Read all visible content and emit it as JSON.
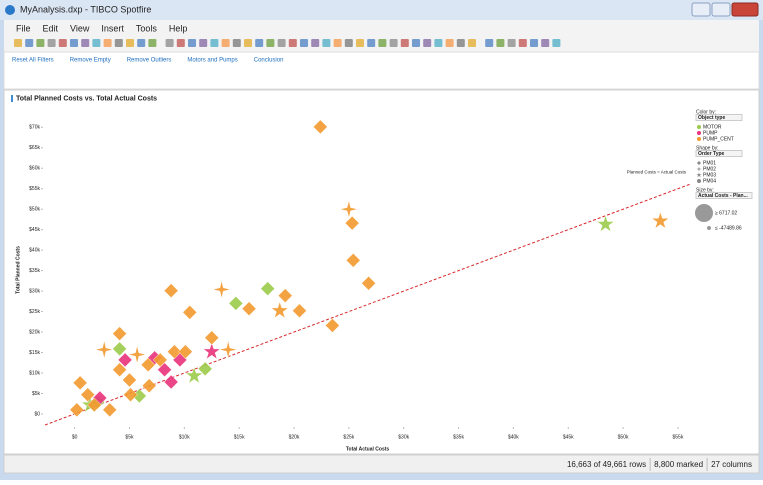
{
  "window": {
    "title": "MyAnalysis.dxp - TIBCO Spotfire"
  },
  "menu": [
    "File",
    "Edit",
    "View",
    "Insert",
    "Tools",
    "Help"
  ],
  "page_tabs": [
    "Reset All Filters",
    "Remove Empty",
    "Remove Outliers",
    "Motors and Pumps",
    "Conclusion"
  ],
  "chart_data": {
    "type": "scatter",
    "title": "Total Planned Costs vs. Total Actual Costs",
    "x_label": "Total Actual Costs",
    "y_label": "Total Planned Costs",
    "xlim": [
      -2700,
      56100
    ],
    "ylim": [
      -2700,
      73000
    ],
    "xticks": [
      {
        "value": 0,
        "label": "$0"
      },
      {
        "value": 5000,
        "label": "$5k"
      },
      {
        "value": 10000,
        "label": "$10k"
      },
      {
        "value": 15000,
        "label": "$15k"
      },
      {
        "value": 20000,
        "label": "$20k"
      },
      {
        "value": 25000,
        "label": "$25k"
      },
      {
        "value": 30000,
        "label": "$30k"
      },
      {
        "value": 35000,
        "label": "$35k"
      },
      {
        "value": 40000,
        "label": "$40k"
      },
      {
        "value": 45000,
        "label": "$45k"
      },
      {
        "value": 50000,
        "label": "$50k"
      },
      {
        "value": 55000,
        "label": "$55k"
      }
    ],
    "yticks": [
      {
        "value": 0,
        "label": "$0"
      },
      {
        "value": 5000,
        "label": "$5k"
      },
      {
        "value": 10000,
        "label": "$10k"
      },
      {
        "value": 15000,
        "label": "$15k"
      },
      {
        "value": 20000,
        "label": "$20k"
      },
      {
        "value": 25000,
        "label": "$25k"
      },
      {
        "value": 30000,
        "label": "$30k"
      },
      {
        "value": 35000,
        "label": "$35k"
      },
      {
        "value": 40000,
        "label": "$40k"
      },
      {
        "value": 45000,
        "label": "$45k"
      },
      {
        "value": 50000,
        "label": "$50k"
      },
      {
        "value": 55000,
        "label": "$55k"
      },
      {
        "value": 60000,
        "label": "$60k"
      },
      {
        "value": 65000,
        "label": "$65k"
      },
      {
        "value": 70000,
        "label": "$70k"
      }
    ],
    "reference_line": {
      "label": "Planned Costs = Actual Costs",
      "color": "#d9262b"
    },
    "series": [
      {
        "name": "MOTOR",
        "color": "#9ccb4a",
        "x": [
          48400,
          17600,
          14700,
          4100,
          11900,
          10900,
          5900,
          1400,
          2100
        ],
        "values": [
          46300,
          30600,
          27000,
          15900,
          11000,
          9300,
          4400,
          2200,
          2900
        ],
        "order_type": [
          "PM03",
          "PM01",
          "PM01",
          "PM01",
          "PM01",
          "PM03",
          "PM01",
          "PM03",
          "PM01"
        ]
      },
      {
        "name": "PUMP",
        "color": "#e8337c",
        "x": [
          12500,
          7300,
          8200,
          8800,
          2300,
          4600,
          9600
        ],
        "values": [
          15200,
          13700,
          10800,
          7800,
          3900,
          13200,
          13200
        ],
        "order_type": [
          "PM03",
          "PM01",
          "PM01",
          "PM01",
          "PM01",
          "PM01",
          "PM01"
        ]
      },
      {
        "name": "PUMP_CENT",
        "color": "#f39a2f",
        "x": [
          22400,
          25000,
          25300,
          25400,
          26800,
          23500,
          20500,
          18700,
          19200,
          15900,
          13400,
          10500,
          8800,
          12500,
          14000,
          9100,
          10100,
          6700,
          5700,
          4100,
          2700,
          4100,
          5000,
          6800,
          500,
          1200,
          200,
          1800,
          3200,
          5100,
          7800,
          53400
        ],
        "values": [
          70100,
          50000,
          46600,
          37500,
          31900,
          21600,
          25200,
          25200,
          28900,
          25700,
          30400,
          24800,
          30100,
          18600,
          15700,
          15200,
          15200,
          12000,
          14500,
          19600,
          15700,
          10800,
          8300,
          6900,
          7600,
          4700,
          1000,
          2200,
          1000,
          4700,
          13200,
          47100
        ],
        "order_type": [
          "PM01",
          "PM02",
          "PM01",
          "PM01",
          "PM01",
          "PM01",
          "PM01",
          "PM03",
          "PM01",
          "PM01",
          "PM02",
          "PM01",
          "PM01",
          "PM01",
          "PM02",
          "PM01",
          "PM01",
          "PM01",
          "PM02",
          "PM01",
          "PM02",
          "PM01",
          "PM01",
          "PM01",
          "PM01",
          "PM01",
          "PM01",
          "PM01",
          "PM01",
          "PM01",
          "PM01",
          "PM03"
        ]
      }
    ],
    "legend": {
      "color_by_label": "Color by:",
      "color_by": "Object type",
      "shape_by_label": "Shape by:",
      "shape_by": "Order Type",
      "shapes": [
        "PM01",
        "PM02",
        "PM03",
        "PM04"
      ],
      "size_by_label": "Size by:",
      "size_by": "Actual Costs - Plan...",
      "size_max": "≥ 6717.02",
      "size_min": "≤ -47489.86"
    }
  },
  "status": [
    "16,663 of 49,661 rows",
    "8,800 marked",
    "27 columns"
  ]
}
